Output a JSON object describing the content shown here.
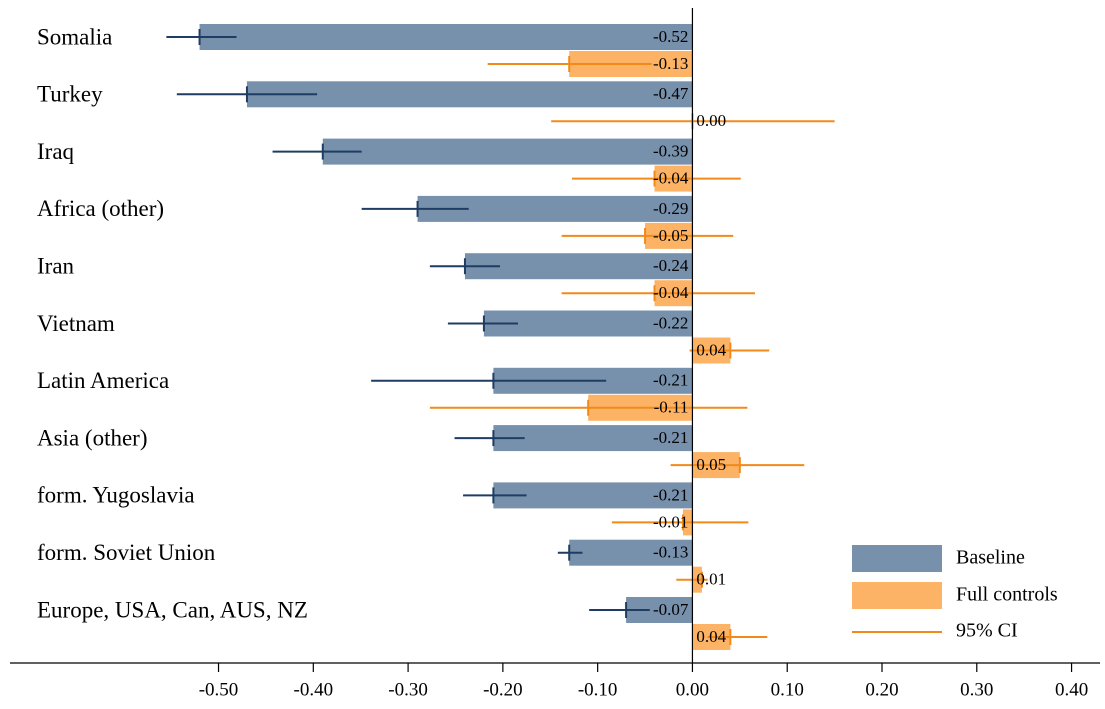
{
  "chart_data": {
    "type": "bar",
    "orientation": "horizontal",
    "categories": [
      "Somalia",
      "Turkey",
      "Iraq",
      "Africa (other)",
      "Iran",
      "Vietnam",
      "Latin America",
      "Asia (other)",
      "form. Yugoslavia",
      "form. Soviet Union",
      "Europe, USA, Can, AUS, NZ"
    ],
    "series": [
      {
        "name": "Baseline",
        "color": "#7790ab",
        "ci_color": "#1f3d63",
        "values": [
          -0.52,
          -0.47,
          -0.39,
          -0.29,
          -0.24,
          -0.22,
          -0.21,
          -0.21,
          -0.21,
          -0.13,
          -0.07
        ],
        "value_labels": [
          "-0.52",
          "-0.47",
          "-0.39",
          "-0.29",
          "-0.24",
          "-0.22",
          "-0.21",
          "-0.21",
          "-0.21",
          "-0.13",
          "-0.07"
        ],
        "ci_low": [
          -0.555,
          -0.544,
          -0.443,
          -0.349,
          -0.277,
          -0.258,
          -0.339,
          -0.251,
          -0.242,
          -0.142,
          -0.109
        ],
        "ci_high": [
          -0.481,
          -0.396,
          -0.349,
          -0.236,
          -0.203,
          -0.184,
          -0.091,
          -0.177,
          -0.175,
          -0.116,
          -0.045
        ]
      },
      {
        "name": "Full controls",
        "color": "#fdb366",
        "ci_color": "#f28a1a",
        "values": [
          -0.13,
          0,
          -0.04,
          -0.05,
          -0.04,
          0.04,
          -0.11,
          0.05,
          -0.01,
          0.01,
          0.04
        ],
        "value_labels": [
          "-0.13",
          "0.00",
          "-0.04",
          "-0.05",
          "-0.04",
          "0.04",
          "-0.11",
          "0.05",
          "-0.01",
          "0.01",
          "0.04"
        ],
        "ci_low": [
          -0.216,
          -0.149,
          -0.127,
          -0.138,
          -0.138,
          -0.003,
          -0.277,
          -0.023,
          -0.085,
          -0.017,
          0.016
        ],
        "ci_high": [
          -0.043,
          0.15,
          0.051,
          0.043,
          0.066,
          0.081,
          0.058,
          0.118,
          0.059,
          0.016,
          0.079
        ]
      }
    ],
    "ci_legend": "95% CI",
    "xlim": [
      -0.72,
      0.43
    ],
    "xticks": [
      {
        "value": -0.5,
        "label": "-0.50"
      },
      {
        "value": -0.4,
        "label": "-0.40"
      },
      {
        "value": -0.3,
        "label": "-0.30"
      },
      {
        "value": -0.2,
        "label": "-0.20"
      },
      {
        "value": -0.1,
        "label": "-0.10"
      },
      {
        "value": 0,
        "label": "0.00"
      },
      {
        "value": 0.1,
        "label": "0.10"
      },
      {
        "value": 0.2,
        "label": "0.20"
      },
      {
        "value": 0.3,
        "label": "0.30"
      },
      {
        "value": 0.4,
        "label": "0.40"
      }
    ],
    "legend": "lower right"
  }
}
